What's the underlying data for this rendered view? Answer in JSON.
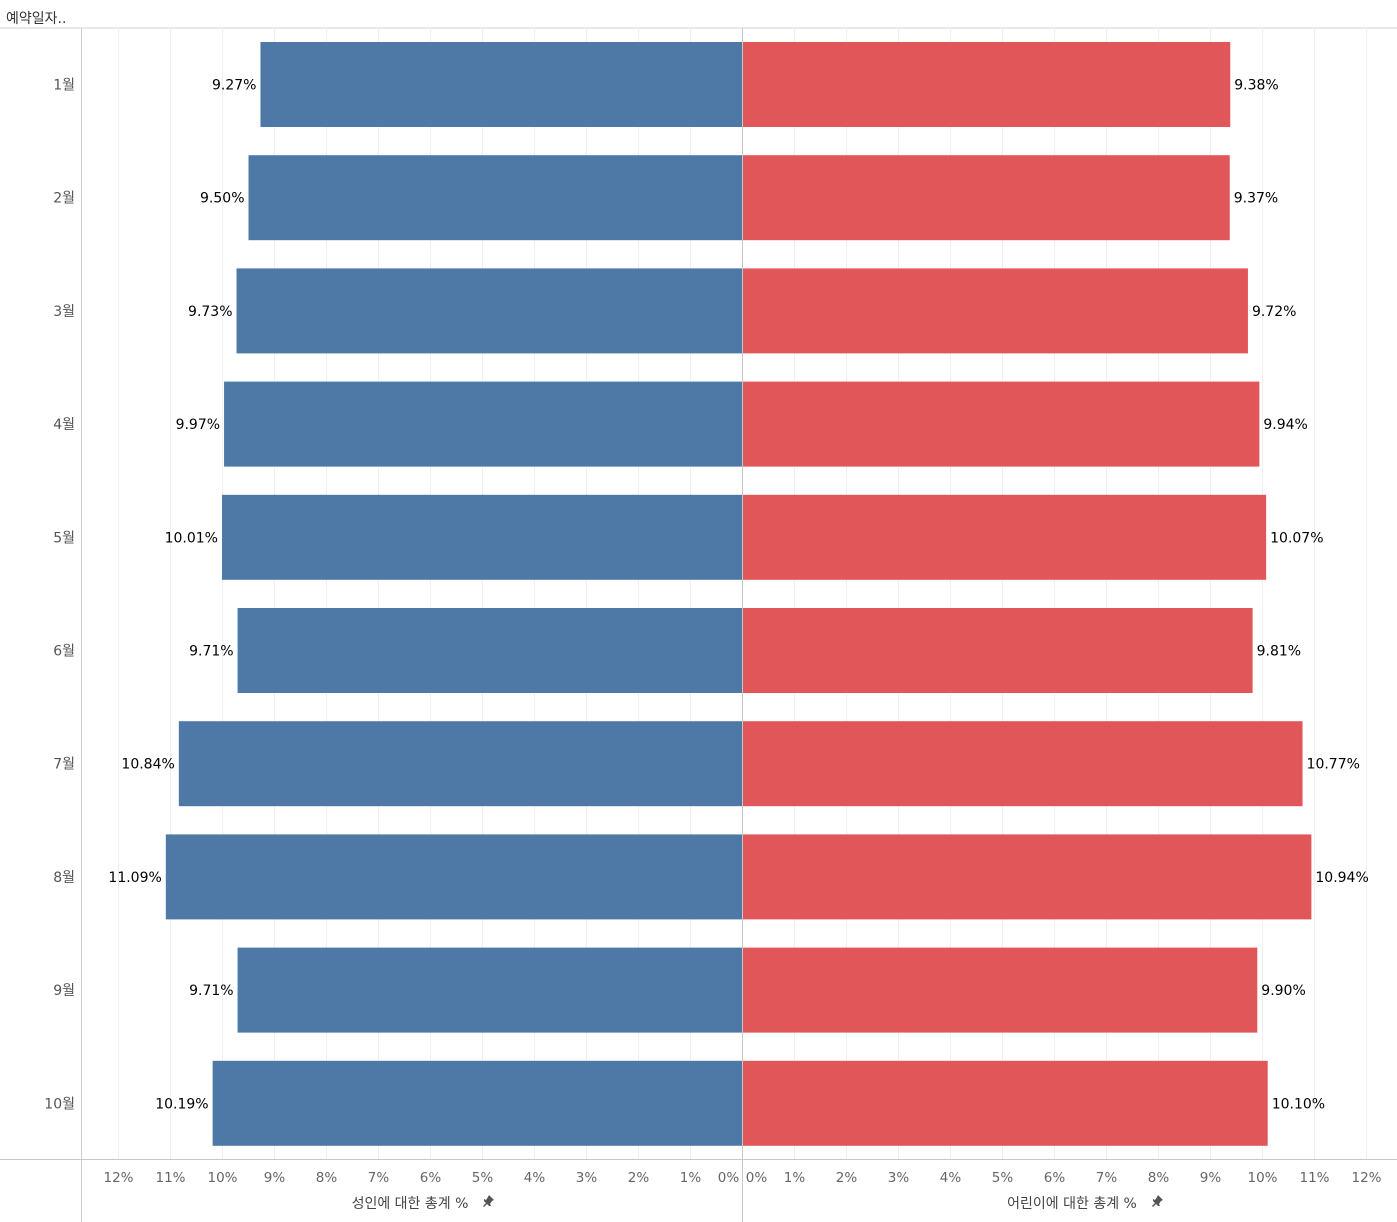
{
  "header": {
    "dimension_label": "예약일자.."
  },
  "pin_icon": "pin-icon",
  "chart_data": {
    "type": "bar",
    "orientation": "horizontal-diverging",
    "categories": [
      "1월",
      "2월",
      "3월",
      "4월",
      "5월",
      "6월",
      "7월",
      "8월",
      "9월",
      "10월"
    ],
    "series": [
      {
        "name": "성인에 대한 총계 %",
        "side": "left",
        "color": "#4e79a7",
        "values": [
          9.27,
          9.5,
          9.73,
          9.97,
          10.01,
          9.71,
          10.84,
          11.09,
          9.71,
          10.19
        ],
        "labels": [
          "9.27%",
          "9.50%",
          "9.73%",
          "9.97%",
          "10.01%",
          "9.71%",
          "10.84%",
          "11.09%",
          "9.71%",
          "10.19%"
        ]
      },
      {
        "name": "어린이에 대한 총계 %",
        "side": "right",
        "color": "#e15759",
        "values": [
          9.38,
          9.37,
          9.72,
          9.94,
          10.07,
          9.81,
          10.77,
          10.94,
          9.9,
          10.1
        ],
        "labels": [
          "9.38%",
          "9.37%",
          "9.72%",
          "9.94%",
          "10.07%",
          "9.81%",
          "10.77%",
          "10.94%",
          "9.90%",
          "10.10%"
        ]
      }
    ],
    "xlim": [
      0,
      12
    ],
    "ticks": [
      0,
      1,
      2,
      3,
      4,
      5,
      6,
      7,
      8,
      9,
      10,
      11,
      12
    ],
    "tick_labels": [
      "0%",
      "1%",
      "2%",
      "3%",
      "4%",
      "5%",
      "6%",
      "7%",
      "8%",
      "9%",
      "10%",
      "11%",
      "12%"
    ],
    "xlabel_left": "성인에 대한 총계 %",
    "xlabel_right": "어린이에 대한 총계 %",
    "grid": true
  }
}
